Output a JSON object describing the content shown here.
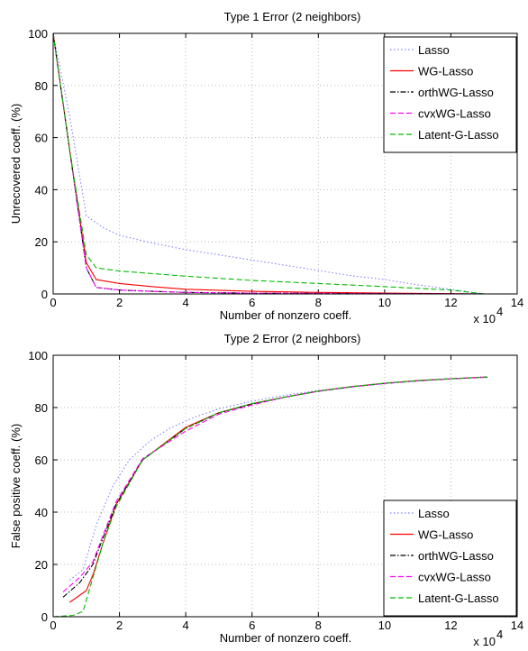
{
  "chart_data": [
    {
      "type": "line",
      "title": "Type 1 Error (2 neighbors)",
      "xlabel": "Number of nonzero coeff.",
      "ylabel": "Unrecovered coeff. (%)",
      "x_multiplier_label": "x 10",
      "x_multiplier_exp": "4",
      "xlim": [
        0,
        14
      ],
      "ylim": [
        0,
        100
      ],
      "xticks": [
        "0",
        "2",
        "4",
        "6",
        "8",
        "10",
        "12",
        "14"
      ],
      "yticks": [
        "0",
        "20",
        "40",
        "60",
        "80",
        "100"
      ],
      "grid": true,
      "legend_position": "top-right",
      "series": [
        {
          "name": "Lasso",
          "color": "#8080ff",
          "dash": "dotted",
          "x": [
            0,
            0.5,
            1.0,
            1.5,
            2.0,
            3.0,
            4.0,
            5.0,
            6.0,
            7.0,
            8.0,
            9.0,
            10.0,
            11.0,
            12.0,
            13.0
          ],
          "y": [
            100,
            68,
            30,
            25.5,
            22.5,
            19.5,
            17,
            15,
            13,
            11,
            9,
            7,
            5.5,
            3.5,
            1.8,
            0
          ]
        },
        {
          "name": "WG-Lasso",
          "color": "#ff0000",
          "dash": "solid",
          "x": [
            0,
            0.5,
            1.0,
            1.3,
            2.0,
            3.0,
            4.0,
            6.0,
            8.0,
            10.0,
            13.0
          ],
          "y": [
            100,
            55,
            12,
            5.5,
            4.0,
            2.8,
            1.8,
            1.0,
            0.6,
            0.3,
            0
          ]
        },
        {
          "name": "orthWG-Lasso",
          "color": "#000000",
          "dash": "dashdot",
          "x": [
            0,
            0.5,
            1.0,
            1.3,
            2.0,
            3.0,
            4.0,
            6.0,
            8.0,
            10.0,
            13.0
          ],
          "y": [
            100,
            55,
            10,
            2.5,
            1.5,
            1.0,
            0.6,
            0.3,
            0.2,
            0.1,
            0
          ]
        },
        {
          "name": "cvxWG-Lasso",
          "color": "#ff00ff",
          "dash": "dashed",
          "x": [
            0,
            0.5,
            1.0,
            1.3,
            2.0,
            3.0,
            4.0,
            6.0,
            8.0,
            10.0,
            13.0
          ],
          "y": [
            100,
            55,
            10,
            2.5,
            1.5,
            1.0,
            0.6,
            0.3,
            0.2,
            0.1,
            0
          ]
        },
        {
          "name": "Latent-G-Lasso",
          "color": "#00bb00",
          "dash": "dashed",
          "x": [
            0,
            0.5,
            1.0,
            1.3,
            2.0,
            4.0,
            6.0,
            8.0,
            10.0,
            12.0,
            13.0
          ],
          "y": [
            100,
            55,
            15,
            10,
            8.8,
            6.8,
            5.2,
            4.0,
            2.8,
            1.5,
            0
          ]
        }
      ]
    },
    {
      "type": "line",
      "title": "Type 2 Error (2 neighbors)",
      "xlabel": "Number of nonzero coeff.",
      "ylabel": "False positive coeff. (%)",
      "x_multiplier_label": "x 10",
      "x_multiplier_exp": "4",
      "xlim": [
        0,
        14
      ],
      "ylim": [
        0,
        100
      ],
      "xticks": [
        "0",
        "2",
        "4",
        "6",
        "8",
        "10",
        "12",
        "14"
      ],
      "yticks": [
        "0",
        "20",
        "40",
        "60",
        "80",
        "100"
      ],
      "grid": true,
      "legend_position": "bottom-right",
      "series": [
        {
          "name": "Lasso",
          "color": "#8080ff",
          "dash": "dotted",
          "x": [
            0.5,
            0.9,
            1.3,
            1.8,
            2.3,
            2.9,
            3.5,
            4.2,
            5.0,
            6.0,
            7.0,
            8.0,
            9.0,
            10.0,
            11.0,
            12.0,
            13.1
          ],
          "y": [
            14,
            18,
            35,
            50,
            60,
            67,
            72,
            76,
            79.5,
            82.5,
            84.7,
            86.5,
            88,
            89.3,
            90.2,
            91,
            91.8
          ]
        },
        {
          "name": "WG-Lasso",
          "color": "#ff0000",
          "dash": "solid",
          "x": [
            0.5,
            1.0,
            1.2,
            1.5,
            1.9,
            2.7,
            4.0,
            5.0,
            6.0,
            7.0,
            8.0,
            9.0,
            10.0,
            11.0,
            12.0,
            13.1
          ],
          "y": [
            5.5,
            10,
            16,
            28,
            43,
            60,
            72.5,
            78,
            81.5,
            84,
            86.3,
            88,
            89.3,
            90.3,
            91,
            91.7
          ]
        },
        {
          "name": "orthWG-Lasso",
          "color": "#000000",
          "dash": "dashdot",
          "x": [
            0.3,
            0.8,
            1.2,
            1.5,
            1.9,
            2.7,
            4.0,
            5.0,
            6.0,
            7.0,
            8.0,
            9.0,
            10.0,
            11.0,
            12.0,
            13.1
          ],
          "y": [
            7.5,
            13,
            20,
            30,
            43,
            60,
            72,
            78,
            81.3,
            84,
            86.2,
            87.9,
            89.2,
            90.2,
            91,
            91.6
          ]
        },
        {
          "name": "cvxWG-Lasso",
          "color": "#ff00ff",
          "dash": "dashed",
          "x": [
            0.3,
            0.8,
            1.2,
            1.5,
            1.9,
            2.7,
            4.0,
            5.0,
            6.0,
            7.0,
            8.0,
            9.0,
            10.0,
            11.0,
            12.0,
            13.1
          ],
          "y": [
            9.5,
            15,
            21,
            31,
            44,
            60.5,
            71,
            77.5,
            81,
            84,
            86.2,
            87.9,
            89.2,
            90.2,
            91,
            91.6
          ]
        },
        {
          "name": "Latent-G-Lasso",
          "color": "#00bb00",
          "dash": "dashed",
          "x": [
            0,
            0.6,
            0.9,
            1.2,
            1.5,
            1.9,
            2.7,
            4.0,
            5.0,
            6.0,
            7.0,
            8.0,
            9.0,
            10.0,
            11.0,
            12.0,
            13.1
          ],
          "y": [
            0,
            0.5,
            2,
            15,
            28,
            42,
            60,
            72,
            78,
            81.5,
            84,
            86.3,
            88,
            89.3,
            90.3,
            91,
            91.7
          ]
        }
      ]
    }
  ]
}
